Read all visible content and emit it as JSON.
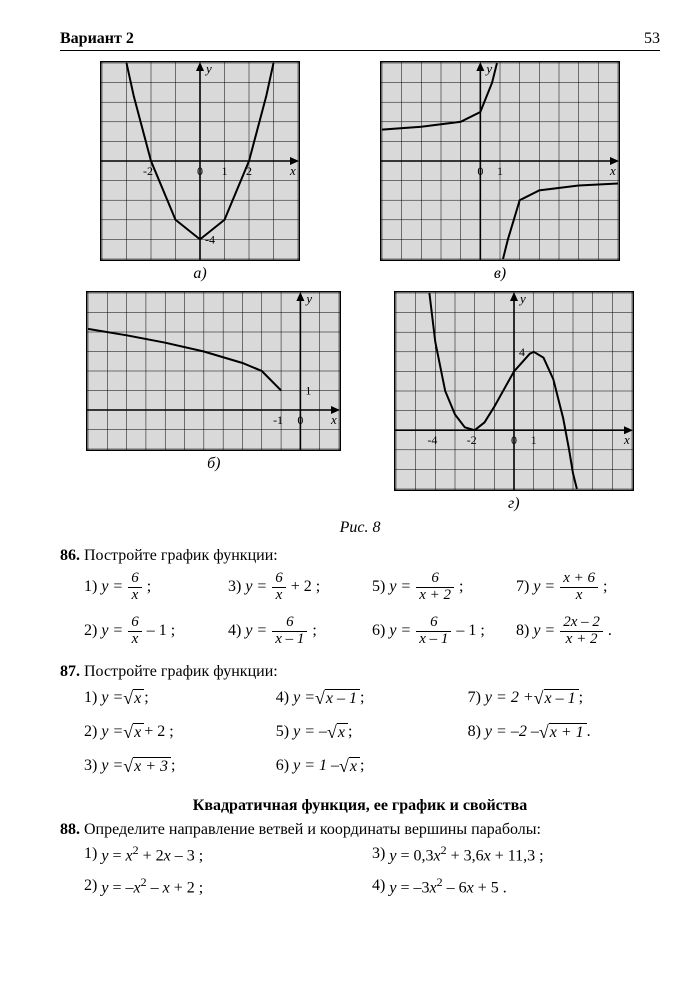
{
  "header": {
    "left": "Вариант 2",
    "page": "53"
  },
  "charts": {
    "a": {
      "label": "а)",
      "type": "line",
      "xlim": [
        -4,
        4
      ],
      "ylim": [
        -5,
        5
      ],
      "axis_labels": {
        "x": "x",
        "y": "y"
      },
      "ticks_x": [
        {
          "x": -2,
          "label": "-2"
        },
        {
          "x": 0,
          "label": "0"
        },
        {
          "x": 1,
          "label": "1"
        },
        {
          "x": 2,
          "label": "2"
        }
      ],
      "ticks_y": [
        {
          "y": -4,
          "label": "-4"
        }
      ],
      "grid_color": "#000",
      "line_color": "#000",
      "line_width": 2,
      "background_color": "#d9d9d9",
      "points": [
        [
          -3,
          5
        ],
        [
          -2.7,
          3.3
        ],
        [
          -2,
          0
        ],
        [
          -1,
          -3
        ],
        [
          0,
          -4
        ],
        [
          1,
          -3
        ],
        [
          2,
          0
        ],
        [
          2.7,
          3.3
        ],
        [
          3,
          5
        ]
      ]
    },
    "v": {
      "label": "в)",
      "type": "hyperbola",
      "xlim": [
        -5,
        7
      ],
      "ylim": [
        -5,
        5
      ],
      "axis_labels": {
        "x": "x",
        "y": "y"
      },
      "ticks_x": [
        {
          "x": 0,
          "label": "0"
        },
        {
          "x": 1,
          "label": "1"
        }
      ],
      "ticks_y": [],
      "grid_color": "#000",
      "line_color": "#000",
      "line_width": 2,
      "background_color": "#d9d9d9",
      "branch1": [
        [
          -5,
          1.6
        ],
        [
          -3,
          1.75
        ],
        [
          -1,
          2
        ],
        [
          0,
          2.5
        ],
        [
          0.6,
          4
        ],
        [
          0.85,
          5
        ]
      ],
      "branch2": [
        [
          1.15,
          -5
        ],
        [
          1.4,
          -4
        ],
        [
          2,
          -2
        ],
        [
          3,
          -1.5
        ],
        [
          5,
          -1.25
        ],
        [
          7,
          -1.15
        ]
      ]
    },
    "b": {
      "label": "б)",
      "type": "sqrt",
      "xlim": [
        -11,
        2
      ],
      "ylim": [
        -2,
        6
      ],
      "axis_labels": {
        "x": "x",
        "y": "y"
      },
      "ticks_x": [
        {
          "x": -1,
          "label": "-1"
        },
        {
          "x": 0,
          "label": "0"
        }
      ],
      "ticks_y": [
        {
          "y": 1,
          "label": "1"
        }
      ],
      "grid_color": "#000",
      "line_color": "#000",
      "line_width": 2,
      "background_color": "#d9d9d9",
      "points": [
        [
          -11,
          4.16
        ],
        [
          -9,
          3.83
        ],
        [
          -7,
          3.45
        ],
        [
          -5,
          3
        ],
        [
          -3,
          2.41
        ],
        [
          -2,
          2
        ],
        [
          -1,
          1
        ],
        [
          -1,
          1
        ]
      ]
    },
    "g": {
      "label": "г)",
      "type": "cubic",
      "xlim": [
        -6,
        6
      ],
      "ylim": [
        -3,
        7
      ],
      "axis_labels": {
        "x": "x",
        "y": "y"
      },
      "ticks_x": [
        {
          "x": -4,
          "label": "-4"
        },
        {
          "x": -2,
          "label": "-2"
        },
        {
          "x": 0,
          "label": "0"
        },
        {
          "x": 1,
          "label": "1"
        }
      ],
      "ticks_y": [
        {
          "y": 4,
          "label": "4"
        }
      ],
      "grid_color": "#000",
      "line_color": "#000",
      "line_width": 2,
      "background_color": "#d9d9d9",
      "points": [
        [
          -4.3,
          7
        ],
        [
          -4,
          4.5
        ],
        [
          -3.5,
          2
        ],
        [
          -3,
          0.8
        ],
        [
          -2.5,
          0.15
        ],
        [
          -2,
          0
        ],
        [
          -1.5,
          0.4
        ],
        [
          -1,
          1.2
        ],
        [
          0,
          3
        ],
        [
          0.8,
          3.9
        ],
        [
          1,
          4
        ],
        [
          1.5,
          3.7
        ],
        [
          2,
          2.6
        ],
        [
          2.5,
          0.6
        ],
        [
          2.8,
          -1
        ],
        [
          3,
          -2.2
        ],
        [
          3.2,
          -3
        ]
      ]
    }
  },
  "fig_caption": "Рис. 8",
  "p86": {
    "num": "86.",
    "text": "Постройте график функции:",
    "items": [
      {
        "n": "1)",
        "lhs": "y =",
        "frac": {
          "num": "6",
          "den": "x"
        },
        "tail": ";"
      },
      {
        "n": "3)",
        "lhs": "y =",
        "frac": {
          "num": "6",
          "den": "x"
        },
        "tail": "+ 2 ;"
      },
      {
        "n": "5)",
        "lhs": "y =",
        "frac": {
          "num": "6",
          "den": "x + 2"
        },
        "tail": ";"
      },
      {
        "n": "7)",
        "lhs": "y =",
        "frac": {
          "num": "x + 6",
          "den": "x"
        },
        "tail": ";"
      },
      {
        "n": "2)",
        "lhs": "y =",
        "frac": {
          "num": "6",
          "den": "x"
        },
        "tail": "– 1 ;"
      },
      {
        "n": "4)",
        "lhs": "y =",
        "frac": {
          "num": "6",
          "den": "x – 1"
        },
        "tail": ";"
      },
      {
        "n": "6)",
        "lhs": "y =",
        "frac": {
          "num": "6",
          "den": "x – 1"
        },
        "tail": "– 1 ;"
      },
      {
        "n": "8)",
        "lhs": "y =",
        "frac": {
          "num": "2x – 2",
          "den": "x + 2"
        },
        "tail": "."
      }
    ]
  },
  "p87": {
    "num": "87.",
    "text": "Постройте график функции:",
    "items": [
      {
        "n": "1)",
        "pre": "y = ",
        "rad": "x",
        "post": " ;"
      },
      {
        "n": "4)",
        "pre": "y = ",
        "rad": "x – 1",
        "post": " ;"
      },
      {
        "n": "7)",
        "pre": "y = 2 + ",
        "rad": "x – 1",
        "post": " ;"
      },
      {
        "n": "2)",
        "pre": "y = ",
        "rad": "x",
        "post": " + 2 ;"
      },
      {
        "n": "5)",
        "pre": "y = – ",
        "rad": "x",
        "post": " ;"
      },
      {
        "n": "8)",
        "pre": "y = –2 – ",
        "rad": "x + 1",
        "post": " ."
      },
      {
        "n": "3)",
        "pre": "y = ",
        "rad": "x + 3",
        "post": " ;"
      },
      {
        "n": "6)",
        "pre": "y = 1 – ",
        "rad": "x",
        "post": " ;"
      },
      {
        "n": "",
        "pre": "",
        "rad": "",
        "post": ""
      }
    ]
  },
  "section_title": "Квадратичная функция, ее график и свойства",
  "p88": {
    "num": "88.",
    "text": "Определите направление ветвей и координаты вершины пара­болы:",
    "items": [
      {
        "n": "1)",
        "eq": "y = x² + 2x – 3 ;"
      },
      {
        "n": "3)",
        "eq": "y = 0,3x² + 3,6x + 11,3 ;"
      },
      {
        "n": "2)",
        "eq": "y = –x² – x + 2 ;"
      },
      {
        "n": "4)",
        "eq": "y = –3x² – 6x + 5 ."
      }
    ]
  }
}
